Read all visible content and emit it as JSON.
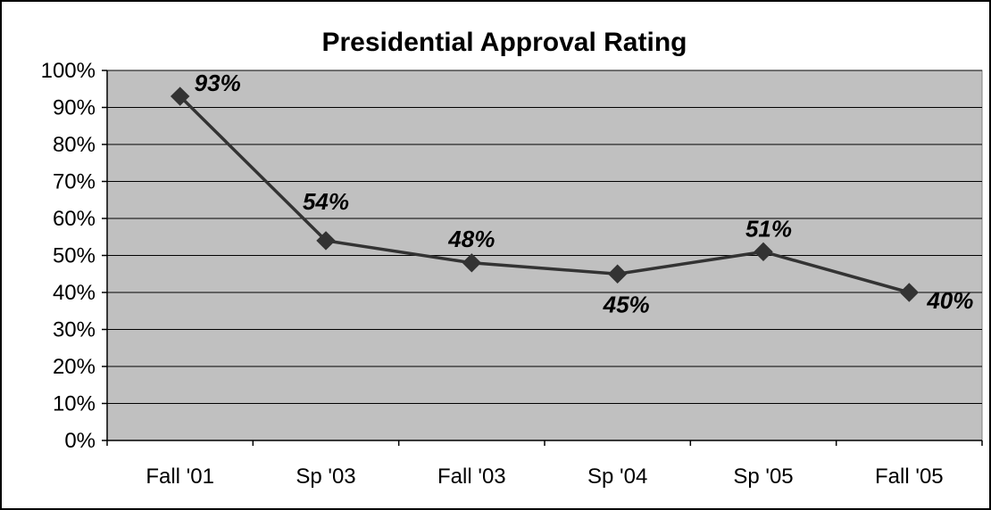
{
  "chart_data": {
    "type": "line",
    "title": "Presidential Approval Rating",
    "xlabel": "",
    "ylabel": "",
    "categories": [
      "Fall '01",
      "Sp '03",
      "Fall '03",
      "Sp '04",
      "Sp '05",
      "Fall '05"
    ],
    "series": [
      {
        "values": [
          93,
          54,
          48,
          45,
          51,
          40
        ],
        "data_labels": [
          "93%",
          "54%",
          "48%",
          "45%",
          "51%",
          "40%"
        ],
        "color": "#333333",
        "marker": "diamond"
      }
    ],
    "ylim": [
      0,
      100
    ],
    "y_ticks": [
      0,
      10,
      20,
      30,
      40,
      50,
      60,
      70,
      80,
      90,
      100
    ],
    "y_tick_labels": [
      "0%",
      "10%",
      "20%",
      "30%",
      "40%",
      "50%",
      "60%",
      "70%",
      "80%",
      "90%",
      "100%"
    ],
    "grid": true,
    "legend": "none",
    "plot_background": "#c0c0c0",
    "gridline_color": "#000000"
  }
}
